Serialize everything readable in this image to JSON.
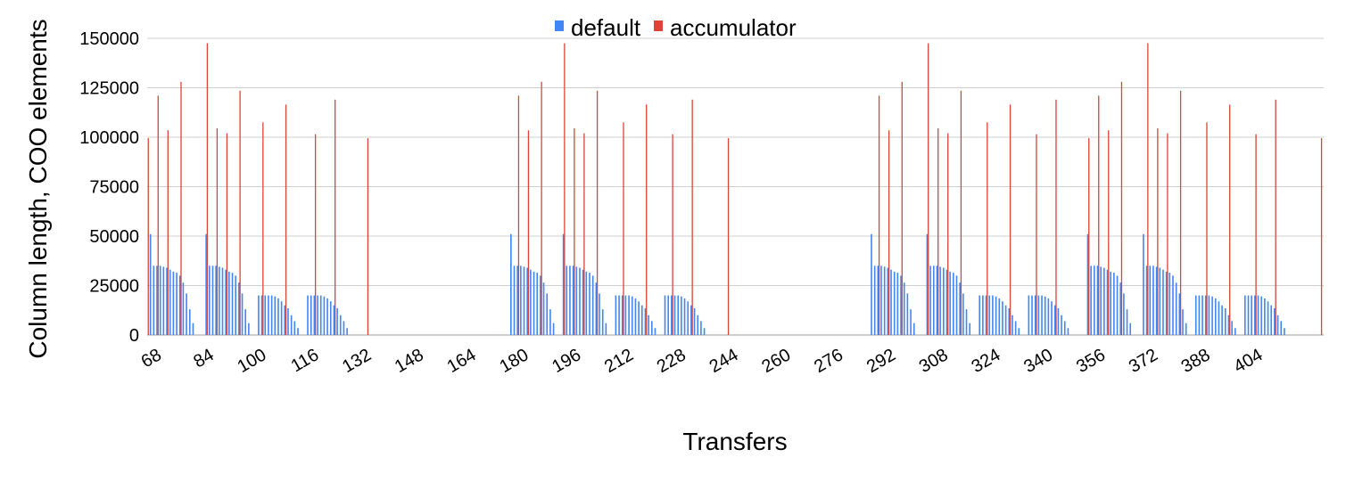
{
  "chart_data": {
    "type": "bar",
    "title": "",
    "xlabel": "Transfers",
    "ylabel": "Column length, COO elements",
    "ylim": [
      0,
      150000
    ],
    "yticks": [
      0,
      25000,
      50000,
      75000,
      100000,
      125000,
      150000
    ],
    "x_range": [
      66,
      425
    ],
    "xtick_labels": [
      68,
      84,
      100,
      116,
      132,
      148,
      164,
      180,
      196,
      212,
      228,
      244,
      260,
      276,
      292,
      308,
      324,
      340,
      356,
      372,
      388,
      404
    ],
    "grid": true,
    "legend_position": "top-center",
    "series": [
      {
        "name": "default",
        "color": "#4285f4"
      },
      {
        "name": "accumulator",
        "color": "#db4437"
      }
    ],
    "default_values": [
      {
        "start": 66,
        "values": [
          0,
          51000,
          35000,
          35000,
          35000,
          34500,
          34000,
          33000,
          32000,
          31500,
          30000,
          26500,
          21000,
          13000,
          6000,
          0,
          0,
          0,
          51000,
          35000,
          35000,
          35000,
          34500,
          34000,
          33000,
          32000,
          31500,
          30000,
          26500,
          21000,
          13000,
          6000,
          0,
          0,
          20000,
          20000,
          20000,
          20000,
          20000,
          19500,
          18500,
          17000,
          15000,
          13500,
          10000,
          7000,
          3500,
          0,
          0,
          20000,
          20000,
          20000,
          20000,
          20000,
          19500,
          18500,
          17000,
          15000,
          13500,
          10000,
          7000,
          3500,
          0,
          0,
          0,
          0,
          0
        ]
      },
      {
        "start": 177,
        "values": [
          51000,
          35000,
          35000,
          35000,
          34500,
          34000,
          33000,
          32000,
          31500,
          30000,
          26500,
          21000,
          13000,
          6000,
          0,
          0,
          51000,
          35000,
          35000,
          35000,
          34500,
          34000,
          33000,
          32000,
          31500,
          30000,
          26500,
          21000,
          13000,
          6000,
          0,
          0,
          20000,
          20000,
          20000,
          20000,
          20000,
          19500,
          18500,
          17000,
          15000,
          13500,
          10000,
          7000,
          3500,
          0,
          0,
          20000,
          20000,
          20000,
          20000,
          20000,
          19500,
          18500,
          17000,
          15000,
          13500,
          10000,
          7000,
          3500,
          0,
          0,
          0
        ]
      },
      {
        "start": 287,
        "values": [
          51000,
          35000,
          35000,
          35000,
          34500,
          34000,
          33000,
          32000,
          31500,
          30000,
          26500,
          21000,
          13000,
          6000,
          0,
          0,
          0,
          51000,
          35000,
          35000,
          35000,
          34500,
          34000,
          33000,
          32000,
          31500,
          30000,
          26500,
          21000,
          13000,
          6000,
          0,
          0,
          20000,
          20000,
          20000,
          20000,
          20000,
          19500,
          18500,
          17000,
          15000,
          13500,
          10000,
          7000,
          3500,
          0,
          0,
          20000,
          20000,
          20000,
          20000,
          20000,
          19500,
          18500,
          17000,
          15000,
          13500,
          10000,
          7000,
          3500,
          0,
          0,
          0,
          0,
          0,
          51000,
          35000,
          35000,
          35000,
          34500,
          34000,
          33000,
          32000,
          31500,
          30000,
          26500,
          21000,
          13000,
          6000,
          0,
          0,
          0,
          51000,
          35000,
          35000,
          35000,
          34500,
          34000,
          33000,
          32000,
          31500,
          30000,
          26500,
          21000,
          13000,
          6000,
          0,
          0,
          20000,
          20000,
          20000,
          20000,
          20000,
          19500,
          18500,
          17000,
          15000,
          13500,
          10000,
          7000,
          3500,
          0,
          0,
          20000,
          20000,
          20000,
          20000,
          20000,
          19500,
          18500,
          17000,
          15000,
          13500,
          10000,
          7000,
          3500,
          0,
          0
        ]
      }
    ],
    "accumulator_points": [
      {
        "x": 66,
        "y": 99500
      },
      {
        "x": 69,
        "y": 121000
      },
      {
        "x": 72,
        "y": 103500
      },
      {
        "x": 76,
        "y": 128000
      },
      {
        "x": 84,
        "y": 147500
      },
      {
        "x": 87,
        "y": 104500
      },
      {
        "x": 90,
        "y": 102000
      },
      {
        "x": 94,
        "y": 123500
      },
      {
        "x": 101,
        "y": 107500
      },
      {
        "x": 108,
        "y": 116500
      },
      {
        "x": 117,
        "y": 101500
      },
      {
        "x": 123,
        "y": 119000
      },
      {
        "x": 133,
        "y": 99500
      },
      {
        "x": 179,
        "y": 121000
      },
      {
        "x": 182,
        "y": 103500
      },
      {
        "x": 186,
        "y": 128000
      },
      {
        "x": 193,
        "y": 147500
      },
      {
        "x": 196,
        "y": 104500
      },
      {
        "x": 199,
        "y": 102000
      },
      {
        "x": 203,
        "y": 123500
      },
      {
        "x": 211,
        "y": 107500
      },
      {
        "x": 218,
        "y": 116500
      },
      {
        "x": 226,
        "y": 101500
      },
      {
        "x": 232,
        "y": 119000
      },
      {
        "x": 243,
        "y": 99500
      },
      {
        "x": 289,
        "y": 121000
      },
      {
        "x": 292,
        "y": 103500
      },
      {
        "x": 296,
        "y": 128000
      },
      {
        "x": 304,
        "y": 147500
      },
      {
        "x": 307,
        "y": 104500
      },
      {
        "x": 310,
        "y": 102000
      },
      {
        "x": 314,
        "y": 123500
      },
      {
        "x": 322,
        "y": 107500
      },
      {
        "x": 329,
        "y": 116500
      },
      {
        "x": 337,
        "y": 101500
      },
      {
        "x": 343,
        "y": 119000
      },
      {
        "x": 353,
        "y": 99500
      },
      {
        "x": 356,
        "y": 121000
      },
      {
        "x": 359,
        "y": 103500
      },
      {
        "x": 363,
        "y": 128000
      },
      {
        "x": 371,
        "y": 147500
      },
      {
        "x": 374,
        "y": 104500
      },
      {
        "x": 377,
        "y": 102000
      },
      {
        "x": 381,
        "y": 123500
      },
      {
        "x": 389,
        "y": 107500
      },
      {
        "x": 396,
        "y": 116500
      },
      {
        "x": 404,
        "y": 101500
      },
      {
        "x": 410,
        "y": 119000
      },
      {
        "x": 424,
        "y": 99500
      }
    ]
  }
}
